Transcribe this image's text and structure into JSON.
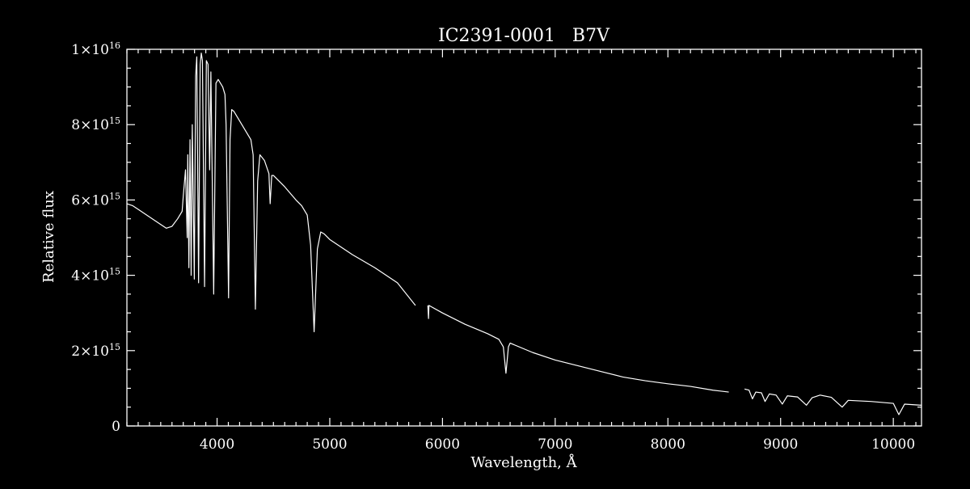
{
  "chart_data": {
    "type": "line",
    "title": "IC2391-0001   B7V",
    "xlabel": "Wavelength, Å",
    "ylabel": "Relative flux",
    "xlim": [
      3200,
      10250
    ],
    "ylim": [
      0,
      1e+16
    ],
    "x_ticks": [
      {
        "value": 4000,
        "label": "4000"
      },
      {
        "value": 5000,
        "label": "5000"
      },
      {
        "value": 6000,
        "label": "6000"
      },
      {
        "value": 7000,
        "label": "7000"
      },
      {
        "value": 8000,
        "label": "8000"
      },
      {
        "value": 9000,
        "label": "9000"
      },
      {
        "value": 10000,
        "label": "10000"
      }
    ],
    "y_ticks": [
      {
        "value": 0,
        "mantissa": "0",
        "exponent": ""
      },
      {
        "value": 2000000000000000.0,
        "mantissa": "2×10",
        "exponent": "15"
      },
      {
        "value": 4000000000000000.0,
        "mantissa": "4×10",
        "exponent": "15"
      },
      {
        "value": 6000000000000000.0,
        "mantissa": "6×10",
        "exponent": "15"
      },
      {
        "value": 8000000000000000.0,
        "mantissa": "8×10",
        "exponent": "15"
      },
      {
        "value": 1e+16,
        "mantissa": "1×10",
        "exponent": "16"
      }
    ],
    "grid": false,
    "colors": {
      "background": "#000000",
      "foreground": "#ffffff"
    },
    "series": [
      {
        "segments": [
          [
            [
              3200,
              5900000000000000.0
            ],
            [
              3250,
              5850000000000000.0
            ],
            [
              3300,
              5750000000000000.0
            ],
            [
              3400,
              5550000000000000.0
            ],
            [
              3500,
              5350000000000000.0
            ],
            [
              3550,
              5250000000000000.0
            ],
            [
              3600,
              5300000000000000.0
            ],
            [
              3650,
              5500000000000000.0
            ],
            [
              3690,
              5700000000000000.0
            ],
            [
              3700,
              6100000000000000.0
            ],
            [
              3720,
              6800000000000000.0
            ],
            [
              3735,
              5000000000000000.0
            ],
            [
              3740,
              7200000000000000.0
            ],
            [
              3750,
              4200000000000000.0
            ],
            [
              3760,
              7600000000000000.0
            ],
            [
              3770,
              4000000000000000.0
            ],
            [
              3780,
              8000000000000000.0
            ],
            [
              3798,
              3900000000000000.0
            ],
            [
              3810,
              9300000000000000.0
            ],
            [
              3820,
              9800000000000000.0
            ],
            [
              3836,
              3800000000000000.0
            ],
            [
              3850,
              9600000000000000.0
            ],
            [
              3860,
              9900000000000000.0
            ],
            [
              3870,
              9700000000000000.0
            ],
            [
              3889,
              3700000000000000.0
            ],
            [
              3905,
              9700000000000000.0
            ],
            [
              3920,
              9600000000000000.0
            ],
            [
              3934,
              6800000000000000.0
            ],
            [
              3945,
              9400000000000000.0
            ],
            [
              3970,
              3500000000000000.0
            ],
            [
              3990,
              9100000000000000.0
            ],
            [
              4010,
              9200000000000000.0
            ],
            [
              4050,
              9000000000000000.0
            ],
            [
              4070,
              8800000000000000.0
            ],
            [
              4080,
              8000000000000000.0
            ],
            [
              4102,
              3400000000000000.0
            ],
            [
              4115,
              7600000000000000.0
            ],
            [
              4130,
              8400000000000000.0
            ],
            [
              4150,
              8350000000000000.0
            ],
            [
              4200,
              8100000000000000.0
            ],
            [
              4250,
              7850000000000000.0
            ],
            [
              4300,
              7600000000000000.0
            ],
            [
              4320,
              7200000000000000.0
            ],
            [
              4340,
              3100000000000000.0
            ],
            [
              4360,
              6500000000000000.0
            ],
            [
              4380,
              7200000000000000.0
            ],
            [
              4420,
              7050000000000000.0
            ],
            [
              4460,
              6700000000000000.0
            ],
            [
              4471,
              5900000000000000.0
            ],
            [
              4485,
              6650000000000000.0
            ],
            [
              4500,
              6650000000000000.0
            ],
            [
              4600,
              6350000000000000.0
            ],
            [
              4700,
              6000000000000000.0
            ],
            [
              4750,
              5850000000000000.0
            ],
            [
              4800,
              5600000000000000.0
            ],
            [
              4830,
              4800000000000000.0
            ],
            [
              4861,
              2500000000000000.0
            ],
            [
              4890,
              4700000000000000.0
            ],
            [
              4920,
              5150000000000000.0
            ],
            [
              4950,
              5100000000000000.0
            ],
            [
              5000,
              4950000000000000.0
            ],
            [
              5200,
              4550000000000000.0
            ],
            [
              5400,
              4200000000000000.0
            ],
            [
              5600,
              3800000000000000.0
            ],
            [
              5760,
              3200000000000000.0
            ]
          ],
          [
            [
              5870,
              3200000000000000.0
            ],
            [
              5876,
              2850000000000000.0
            ],
            [
              5880,
              3200000000000000.0
            ],
            [
              6000,
              3000000000000000.0
            ],
            [
              6200,
              2700000000000000.0
            ],
            [
              6400,
              2450000000000000.0
            ],
            [
              6500,
              2300000000000000.0
            ],
            [
              6540,
              2100000000000000.0
            ],
            [
              6563,
              1400000000000000.0
            ],
            [
              6585,
              2100000000000000.0
            ],
            [
              6600,
              2200000000000000.0
            ],
            [
              6800,
              1950000000000000.0
            ],
            [
              7000,
              1750000000000000.0
            ],
            [
              7200,
              1600000000000000.0
            ],
            [
              7400,
              1450000000000000.0
            ],
            [
              7600,
              1300000000000000.0
            ],
            [
              7800,
              1200000000000000.0
            ],
            [
              8000,
              1120000000000000.0
            ],
            [
              8200,
              1050000000000000.0
            ],
            [
              8400,
              950000000000000.0
            ],
            [
              8540,
              900000000000000.0
            ]
          ],
          [
            [
              8680,
              980000000000000.0
            ],
            [
              8720,
              950000000000000.0
            ],
            [
              8750,
              720000000000000.0
            ],
            [
              8780,
              900000000000000.0
            ],
            [
              8830,
              880000000000000.0
            ],
            [
              8862,
              650000000000000.0
            ],
            [
              8900,
              850000000000000.0
            ],
            [
              8960,
              820000000000000.0
            ],
            [
              9015,
              580000000000000.0
            ],
            [
              9060,
              800000000000000.0
            ],
            [
              9150,
              770000000000000.0
            ],
            [
              9229,
              550000000000000.0
            ],
            [
              9280,
              750000000000000.0
            ],
            [
              9350,
              820000000000000.0
            ],
            [
              9450,
              760000000000000.0
            ],
            [
              9546,
              500000000000000.0
            ],
            [
              9600,
              680000000000000.0
            ],
            [
              9800,
              650000000000000.0
            ],
            [
              10000,
              600000000000000.0
            ],
            [
              10049,
              300000000000000.0
            ],
            [
              10100,
              580000000000000.0
            ],
            [
              10250,
              550000000000000.0
            ]
          ]
        ]
      }
    ]
  }
}
